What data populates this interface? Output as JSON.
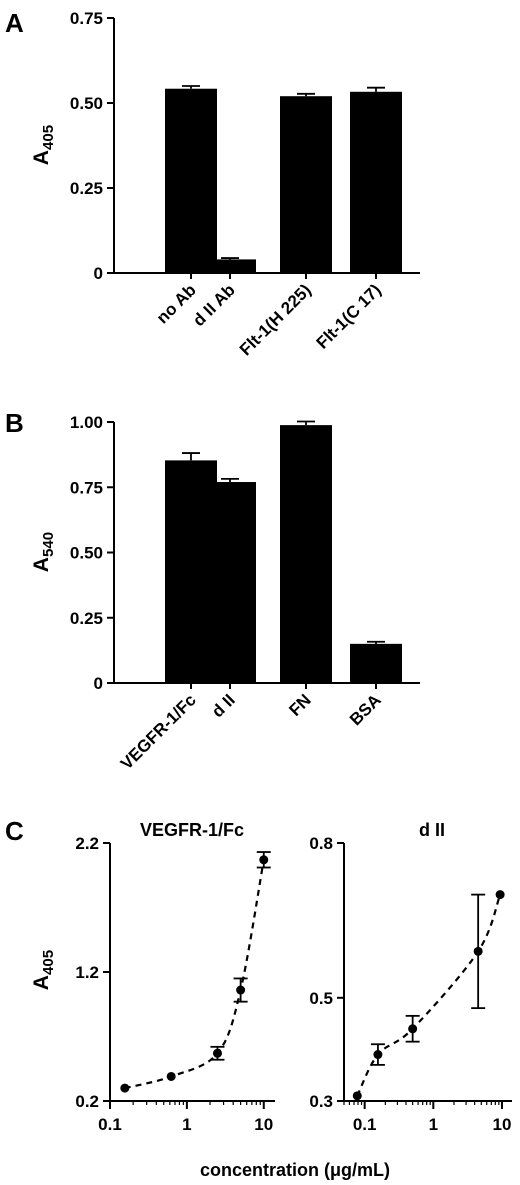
{
  "chart_data": [
    {
      "panel": "A",
      "type": "bar",
      "ylabel": "A",
      "ylabel_sub": "405",
      "categories": [
        "no Ab",
        "d II Ab",
        "Flt-1(H 225)",
        "Flt-1(C 17)"
      ],
      "values": [
        0.542,
        0.04,
        0.52,
        0.533
      ],
      "errors": [
        0.008,
        0.004,
        0.007,
        0.012
      ],
      "yticks": [
        "0",
        "0.25",
        "0.50",
        "0.75"
      ],
      "ylim": [
        0,
        0.75
      ]
    },
    {
      "panel": "B",
      "type": "bar",
      "ylabel": "A",
      "ylabel_sub": "540",
      "categories": [
        "VEGFR-1/Fc",
        "d II",
        "FN",
        "BSA"
      ],
      "values": [
        0.853,
        0.77,
        0.988,
        0.15
      ],
      "errors": [
        0.028,
        0.012,
        0.014,
        0.008
      ],
      "yticks": [
        "0",
        "0.25",
        "0.50",
        "0.75",
        "1.00"
      ],
      "ylim": [
        0,
        1.0
      ]
    },
    {
      "panel": "C",
      "type": "scatter",
      "title": "VEGFR-1/Fc",
      "ylabel": "A",
      "ylabel_sub": "405",
      "x_scale": "log",
      "x": [
        0.156,
        0.625,
        2.5,
        5,
        10
      ],
      "y": [
        0.3,
        0.39,
        0.57,
        1.06,
        2.07
      ],
      "errors": [
        0.0,
        0.0,
        0.05,
        0.09,
        0.06
      ],
      "yticks": [
        "0.2",
        "1.2",
        "2.2"
      ],
      "ylim": [
        0.2,
        2.2
      ],
      "xticks": [
        "0.1",
        "1",
        "10"
      ],
      "xlim": [
        0.1,
        14
      ],
      "fit": "dashed curve"
    },
    {
      "panel": "C",
      "type": "scatter",
      "title": "d II",
      "x_scale": "log",
      "x": [
        0.078,
        0.156,
        0.5,
        4.5,
        9.4
      ],
      "y": [
        0.31,
        0.39,
        0.44,
        0.59,
        0.7
      ],
      "errors": [
        0.0,
        0.02,
        0.025,
        0.11,
        0.0
      ],
      "yticks": [
        "0.3",
        "0.5",
        "0.8"
      ],
      "ylim": [
        0.3,
        0.8
      ],
      "xticks": [
        "0.1",
        "1",
        "10"
      ],
      "xlim": [
        0.05,
        14
      ],
      "fit": "dashed curve"
    }
  ],
  "panel_labels": [
    "A",
    "B",
    "C"
  ],
  "xlabel": "concentration (μg/mL)"
}
